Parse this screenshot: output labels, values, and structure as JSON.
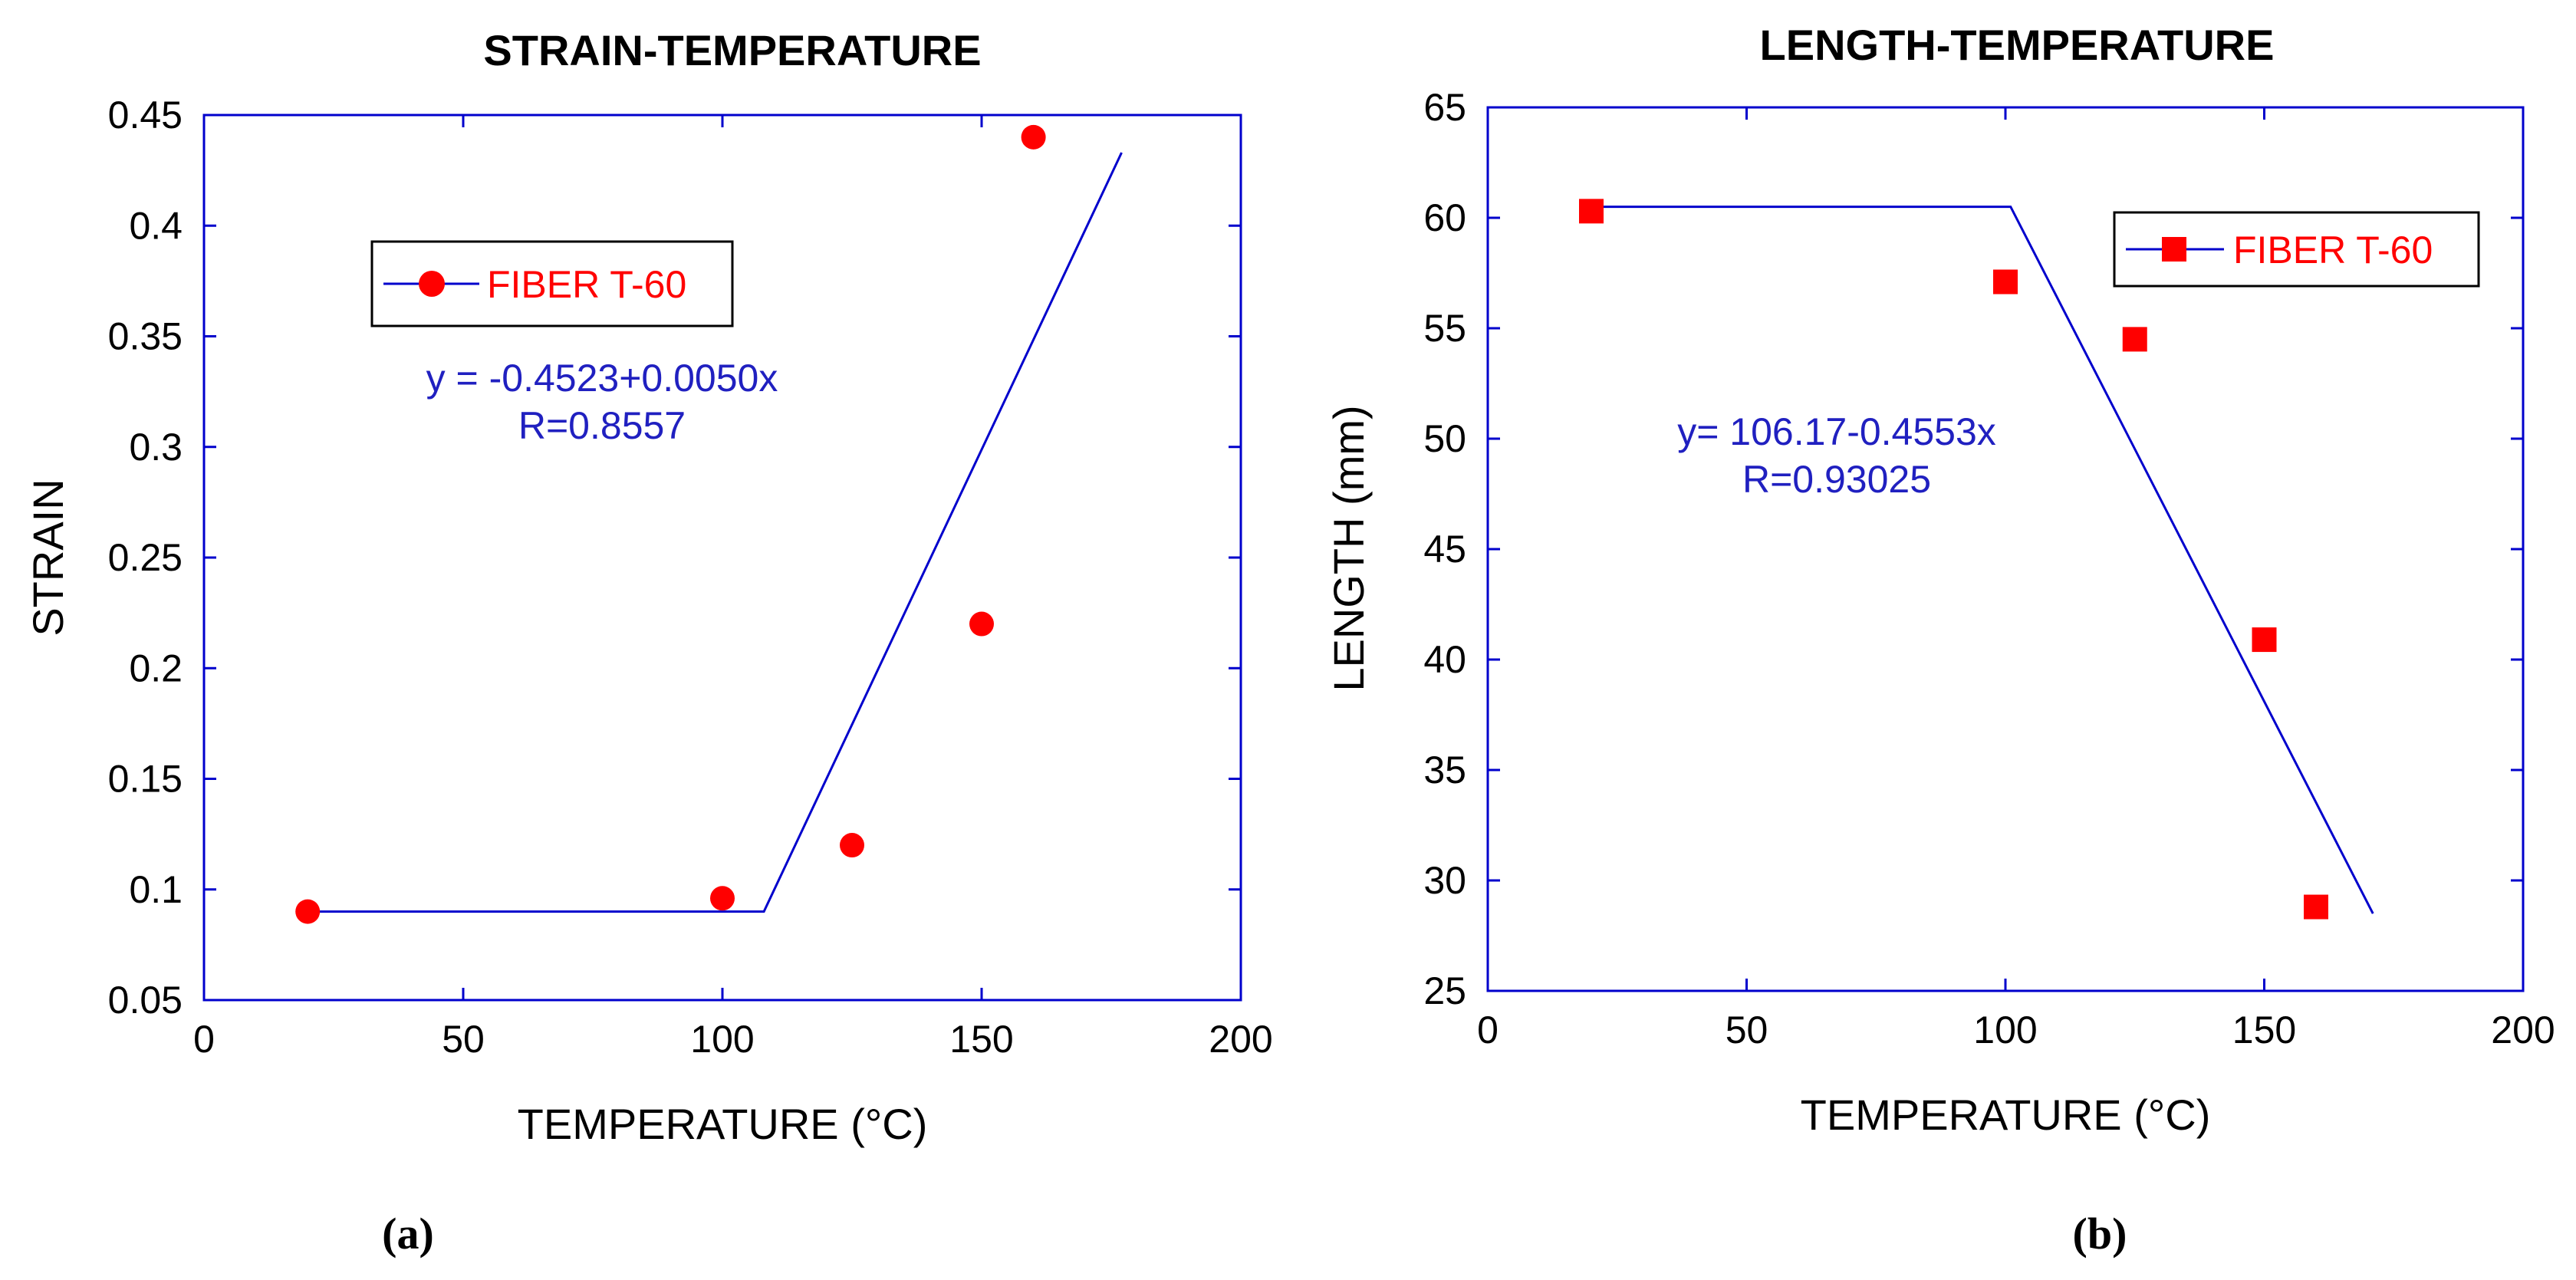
{
  "colors": {
    "axis": "#0000cc",
    "fit_line": "#0000cc",
    "marker": "#ff0000",
    "annotation": "#2020c0",
    "text": "#000000"
  },
  "chart_data": [
    {
      "type": "scatter",
      "panel_label": "(a)",
      "title": "STRAIN-TEMPERATURE",
      "xlabel": "TEMPERATURE (°C)",
      "ylabel": "STRAIN",
      "xlim": [
        0,
        200
      ],
      "ylim": [
        0.05,
        0.45
      ],
      "xticks": [
        0,
        50,
        100,
        150,
        200
      ],
      "xtick_labels": [
        "0",
        "50",
        "100",
        "150",
        "200"
      ],
      "yticks": [
        0.05,
        0.1,
        0.15,
        0.2,
        0.25,
        0.3,
        0.35,
        0.4,
        0.45
      ],
      "ytick_labels": [
        "0.05",
        "0.1",
        "0.15",
        "0.2",
        "0.25",
        "0.3",
        "0.35",
        "0.4",
        "0.45"
      ],
      "marker": "circle",
      "series": [
        {
          "name": "FIBER T-60",
          "x": [
            20,
            100,
            125,
            150,
            160
          ],
          "y": [
            0.09,
            0.096,
            0.12,
            0.22,
            0.44
          ]
        }
      ],
      "fit_line": {
        "x": [
          20,
          108,
          177
        ],
        "y": [
          0.09,
          0.09,
          0.433
        ]
      },
      "legend": {
        "label": "FIBER T-60",
        "position": "upper-left"
      },
      "annotation": {
        "equation": "y = -0.4523+0.0050x",
        "r_value": "R=0.8557"
      }
    },
    {
      "type": "scatter",
      "panel_label": "(b)",
      "title": "LENGTH-TEMPERATURE",
      "xlabel": "TEMPERATURE (°C)",
      "ylabel": "LENGTH (mm)",
      "xlim": [
        0,
        200
      ],
      "ylim": [
        25,
        65
      ],
      "xticks": [
        0,
        50,
        100,
        150,
        200
      ],
      "xtick_labels": [
        "0",
        "50",
        "100",
        "150",
        "200"
      ],
      "yticks": [
        25,
        30,
        35,
        40,
        45,
        50,
        55,
        60,
        65
      ],
      "ytick_labels": [
        "25",
        "30",
        "35",
        "40",
        "45",
        "50",
        "55",
        "60",
        "65"
      ],
      "marker": "square",
      "series": [
        {
          "name": "FIBER T-60",
          "x": [
            20,
            100,
            125,
            150,
            160
          ],
          "y": [
            60.3,
            57.1,
            54.5,
            40.9,
            28.8
          ]
        }
      ],
      "fit_line": {
        "x": [
          20,
          101,
          171
        ],
        "y": [
          60.5,
          60.5,
          28.5
        ]
      },
      "legend": {
        "label": "FIBER T-60",
        "position": "upper-right"
      },
      "annotation": {
        "equation": "y= 106.17-0.4553x",
        "r_value": "R=0.93025"
      }
    }
  ]
}
